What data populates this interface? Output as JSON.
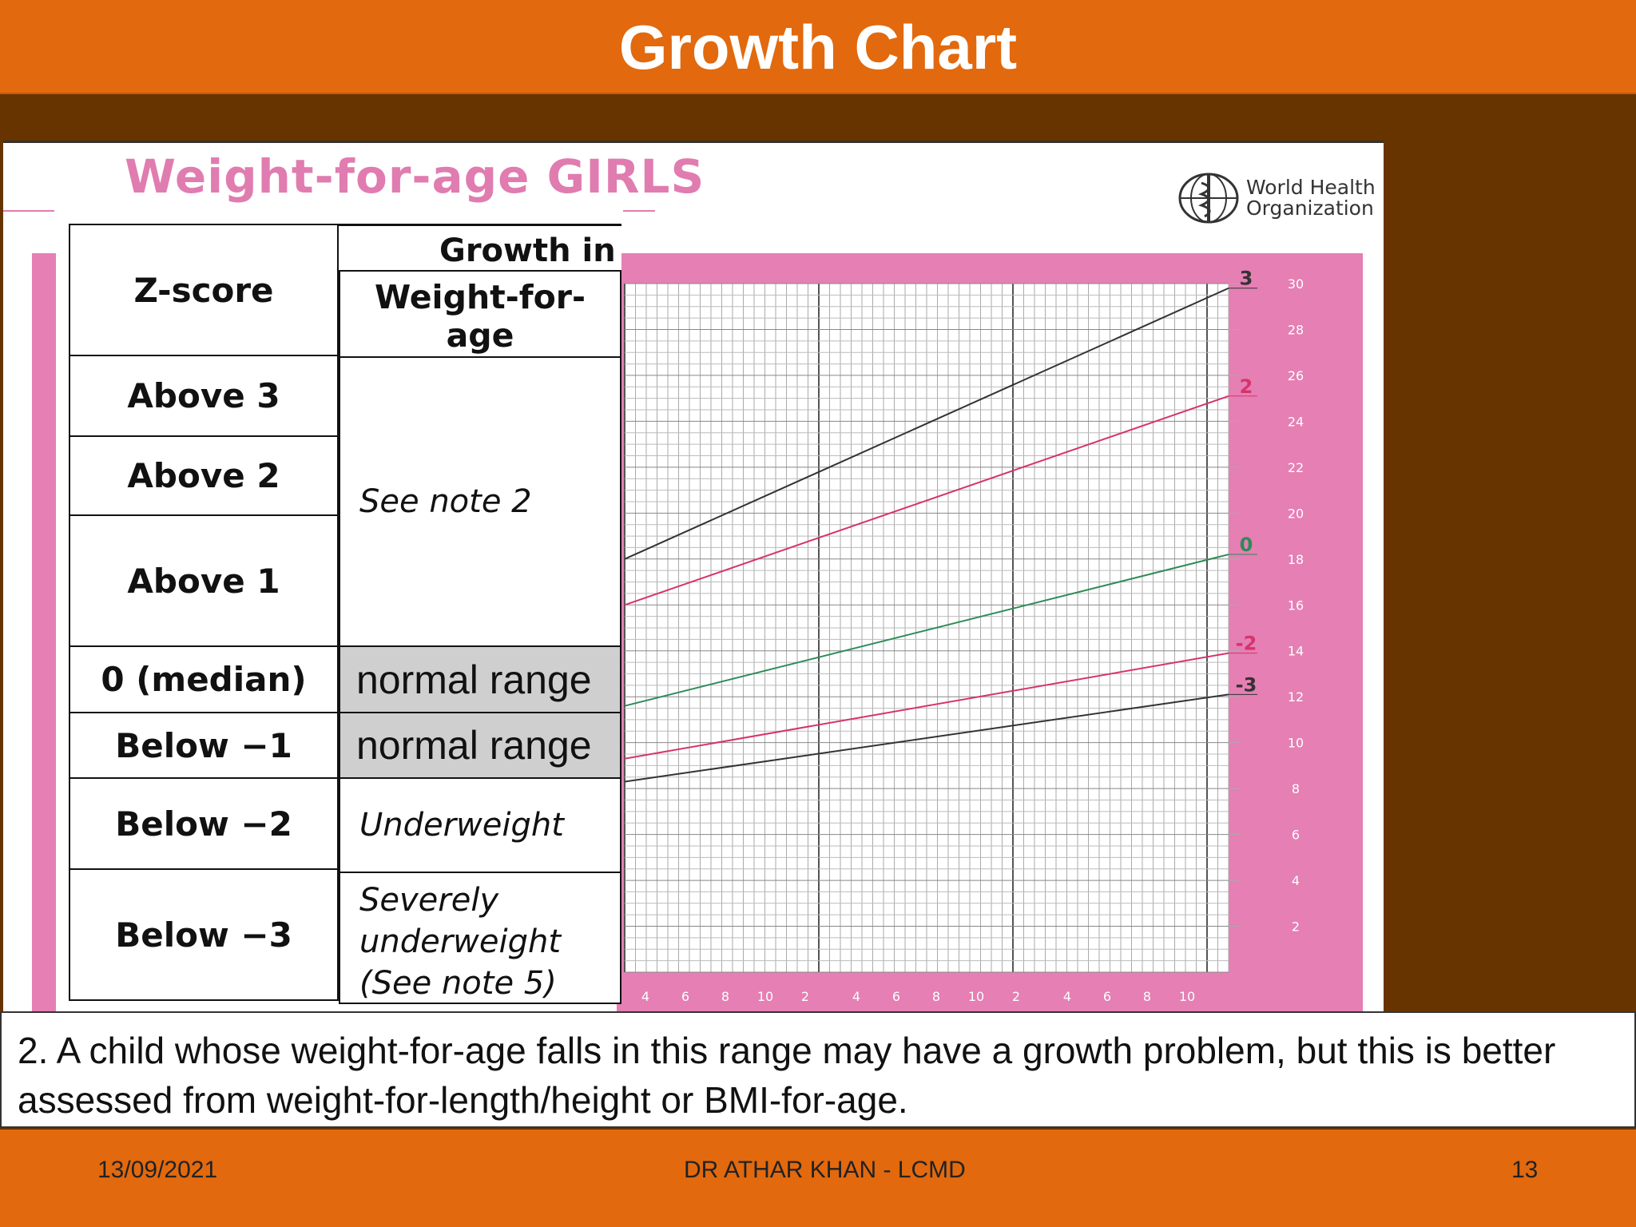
{
  "slide": {
    "title": "Growth Chart",
    "note": "2. A child whose weight-for-age falls in this range may have a growth problem, but this is better assessed from weight-for-length/height or BMI-for-age.",
    "footer_date": "13/09/2021",
    "footer_author": "DR ATHAR KHAN - LCMD",
    "footer_page": "13"
  },
  "chart_header": {
    "title": "Weight-for-age GIRLS",
    "org_line1": "World Health",
    "org_line2": "Organization"
  },
  "table": {
    "col1_header": "Z-score",
    "col2_header_top": "Growth in",
    "col2_header_line1": "Weight-for-",
    "col2_header_line2": "age",
    "rows": [
      {
        "z": "Above 3"
      },
      {
        "z": "Above 2"
      },
      {
        "z": "Above 1"
      },
      {
        "z": "0 (median)",
        "g": "normal range"
      },
      {
        "z": "Below −1",
        "g": "normal range"
      },
      {
        "z": "Below −2",
        "g": "Underweight"
      },
      {
        "z": "Below −3"
      }
    ],
    "note2": "See note 2",
    "severe_line1": "Severely",
    "severe_line2": "underweight",
    "severe_line3": "(See note 5)"
  },
  "chart_data": {
    "type": "line",
    "title": "Weight-for-age GIRLS",
    "xlabel": "",
    "ylabel": "",
    "ylim": [
      0,
      30
    ],
    "y_ticks": [
      "2",
      "4",
      "6",
      "8",
      "10",
      "12",
      "14",
      "16",
      "18",
      "20",
      "22",
      "24",
      "26",
      "28",
      "30"
    ],
    "x_ticks_visible": [
      "4",
      "6",
      "8",
      "10",
      "2",
      "4",
      "6",
      "8",
      "10",
      "2",
      "4",
      "6",
      "8",
      "10"
    ],
    "grid": true,
    "series": [
      {
        "name": "3",
        "color": "#333333",
        "x": [
          0,
          1
        ],
        "values": [
          18,
          29.8
        ]
      },
      {
        "name": "2",
        "color": "#d6336c",
        "x": [
          0,
          1
        ],
        "values": [
          16,
          25.1
        ]
      },
      {
        "name": "0",
        "color": "#2e8b57",
        "x": [
          0,
          1
        ],
        "values": [
          11.6,
          18.2
        ]
      },
      {
        "name": "-2",
        "color": "#d6336c",
        "x": [
          0,
          1
        ],
        "values": [
          9.3,
          13.9
        ]
      },
      {
        "name": "-3",
        "color": "#333333",
        "x": [
          0,
          1
        ],
        "values": [
          8.3,
          12.1
        ]
      }
    ]
  }
}
